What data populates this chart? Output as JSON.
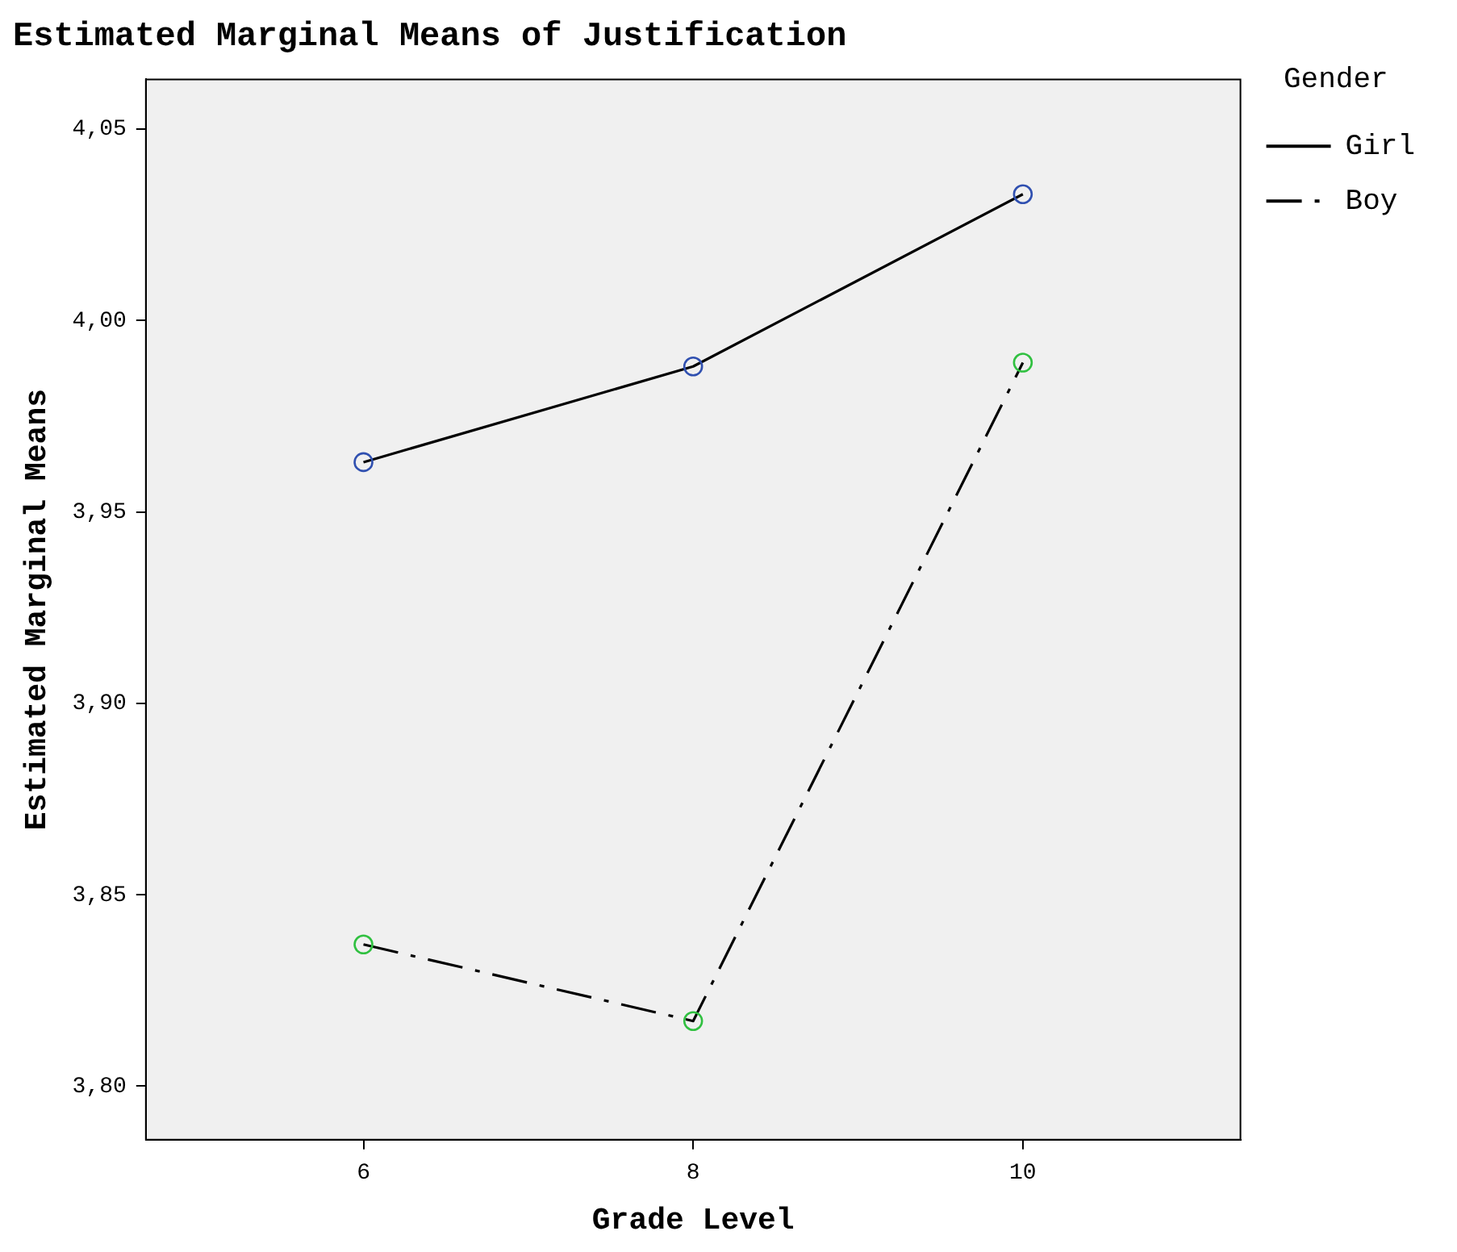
{
  "chart_data": {
    "type": "line",
    "title": "Estimated Marginal Means of Justification",
    "xlabel": "Grade Level",
    "ylabel": "Estimated Marginal Means",
    "legend_title": "Gender",
    "x": [
      6,
      8,
      10
    ],
    "xlim": [
      4.68,
      11.32
    ],
    "xticks": [
      6,
      8,
      10
    ],
    "ylim": [
      3.786,
      4.063
    ],
    "yticks": [
      {
        "value": 3.8,
        "label": "3,80"
      },
      {
        "value": 3.85,
        "label": "3,85"
      },
      {
        "value": 3.9,
        "label": "3,90"
      },
      {
        "value": 3.95,
        "label": "3,95"
      },
      {
        "value": 4.0,
        "label": "4,00"
      },
      {
        "value": 4.05,
        "label": "4,05"
      }
    ],
    "series": [
      {
        "name": "Girl",
        "color": "#000000",
        "colors": [
          "#3050b0",
          "#3050b0",
          "#3050b0"
        ],
        "line_style": "solid",
        "values": [
          3.963,
          3.988,
          4.033
        ]
      },
      {
        "name": "Boy",
        "color": "#000000",
        "colors": [
          "#30c040",
          "#30c040",
          "#30c040"
        ],
        "line_style": "dashed",
        "values": [
          3.837,
          3.817,
          3.989
        ]
      }
    ],
    "marker": "circle",
    "grid": false,
    "legend": "right"
  }
}
